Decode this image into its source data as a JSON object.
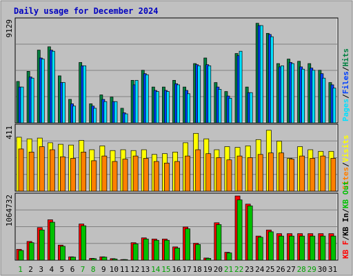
{
  "chart_data": {
    "type": "bar",
    "title": "Daily usage for December 2024",
    "categories": [
      "1",
      "2",
      "3",
      "4",
      "5",
      "6",
      "7",
      "8",
      "9",
      "10",
      "11",
      "12",
      "13",
      "14",
      "15",
      "16",
      "17",
      "18",
      "19",
      "20",
      "21",
      "22",
      "23",
      "24",
      "25",
      "26",
      "27",
      "28",
      "29",
      "30",
      "31"
    ],
    "weekend_days": [
      "1",
      "7",
      "8",
      "14",
      "15",
      "21",
      "22",
      "28",
      "29"
    ],
    "panels": [
      {
        "id": "top",
        "ymax": 9129,
        "ymax_label": "9129",
        "legend": [
          "Pages",
          "/",
          "Files",
          "/",
          "Hits"
        ],
        "series": [
          {
            "name": "Hits",
            "color": "#008040",
            "values": [
              3700,
              4600,
              6500,
              6800,
              4200,
              2100,
              5400,
              1700,
              2500,
              2300,
              1300,
              3800,
              4700,
              3200,
              3200,
              3800,
              3200,
              5300,
              5800,
              3600,
              2800,
              6200,
              3200,
              8900,
              8000,
              5300,
              5700,
              5500,
              5300,
              4700,
              3600
            ]
          },
          {
            "name": "Files",
            "color": "#0040ff",
            "values": [
              3200,
              4100,
              5800,
              6500,
              3600,
              1700,
              5100,
              1500,
              2100,
              1900,
              900,
              3400,
              4400,
              2900,
              2900,
              3500,
              2900,
              5200,
              5200,
              3200,
              2400,
              6000,
              2700,
              8700,
              7900,
              5000,
              5400,
              5000,
              4900,
              4400,
              3400
            ]
          },
          {
            "name": "Pages",
            "color": "#00e0ff",
            "values": [
              3200,
              4000,
              5700,
              6400,
              3600,
              1500,
              5100,
              1300,
              1900,
              1900,
              800,
              3800,
              4300,
              2800,
              2800,
              3400,
              2600,
              5100,
              5100,
              3000,
              2200,
              6400,
              2700,
              8700,
              7700,
              5100,
              5300,
              4800,
              4700,
              4000,
              3100
            ]
          }
        ]
      },
      {
        "id": "middle",
        "ymax": 411,
        "ymax_label": "411",
        "legend": [
          "Sites",
          "/",
          "Visits"
        ],
        "series": [
          {
            "name": "Visits",
            "color": "#ffff00",
            "values": [
              345,
              335,
              340,
              310,
              300,
              295,
              325,
              265,
              290,
              260,
              265,
              260,
              265,
              235,
              240,
              250,
              310,
              370,
              335,
              265,
              285,
              280,
              290,
              330,
              390,
              320,
              210,
              285,
              265,
              255,
              255
            ]
          },
          {
            "name": "Sites",
            "color": "#ff8000",
            "values": [
              270,
              250,
              285,
              265,
              220,
              210,
              250,
              195,
              225,
              190,
              205,
              225,
              210,
              190,
              180,
              190,
              225,
              265,
              240,
              215,
              200,
              225,
              215,
              235,
              245,
              245,
              205,
              225,
              210,
              225,
              210
            ]
          }
        ]
      },
      {
        "id": "bottom",
        "ymax": 1064732,
        "ymax_label": "1064732",
        "legend": [
          "KB F",
          "/",
          "KB In",
          "/",
          "KB Out"
        ],
        "series": [
          {
            "name": "KB F",
            "color": "#ff0000",
            "values": [
              180000,
              310000,
              540000,
              670000,
              250000,
              55000,
              600000,
              30000,
              55000,
              25000,
              10000,
              290000,
              370000,
              350000,
              350000,
              220000,
              550000,
              280000,
              35000,
              620000,
              130000,
              1064732,
              930000,
              400000,
              500000,
              440000,
              440000,
              440000,
              440000,
              440000,
              440000
            ]
          },
          {
            "name": "KB Out",
            "color": "#00c000",
            "values": [
              160000,
              290000,
              500000,
              630000,
              230000,
              50000,
              570000,
              25000,
              50000,
              20000,
              10000,
              270000,
              350000,
              330000,
              330000,
              200000,
              520000,
              260000,
              30000,
              590000,
              120000,
              1000000,
              900000,
              380000,
              470000,
              400000,
              400000,
              400000,
              400000,
              400000,
              400000
            ]
          }
        ]
      }
    ],
    "ylim": [
      0,
      null
    ]
  },
  "colors": {
    "background": "#c0c0c0",
    "plot_background": "#c0c0c0",
    "title": "#0000c0",
    "axis_label": "#000000",
    "day_normal": "#000000",
    "day_weekend": "#00a000"
  }
}
